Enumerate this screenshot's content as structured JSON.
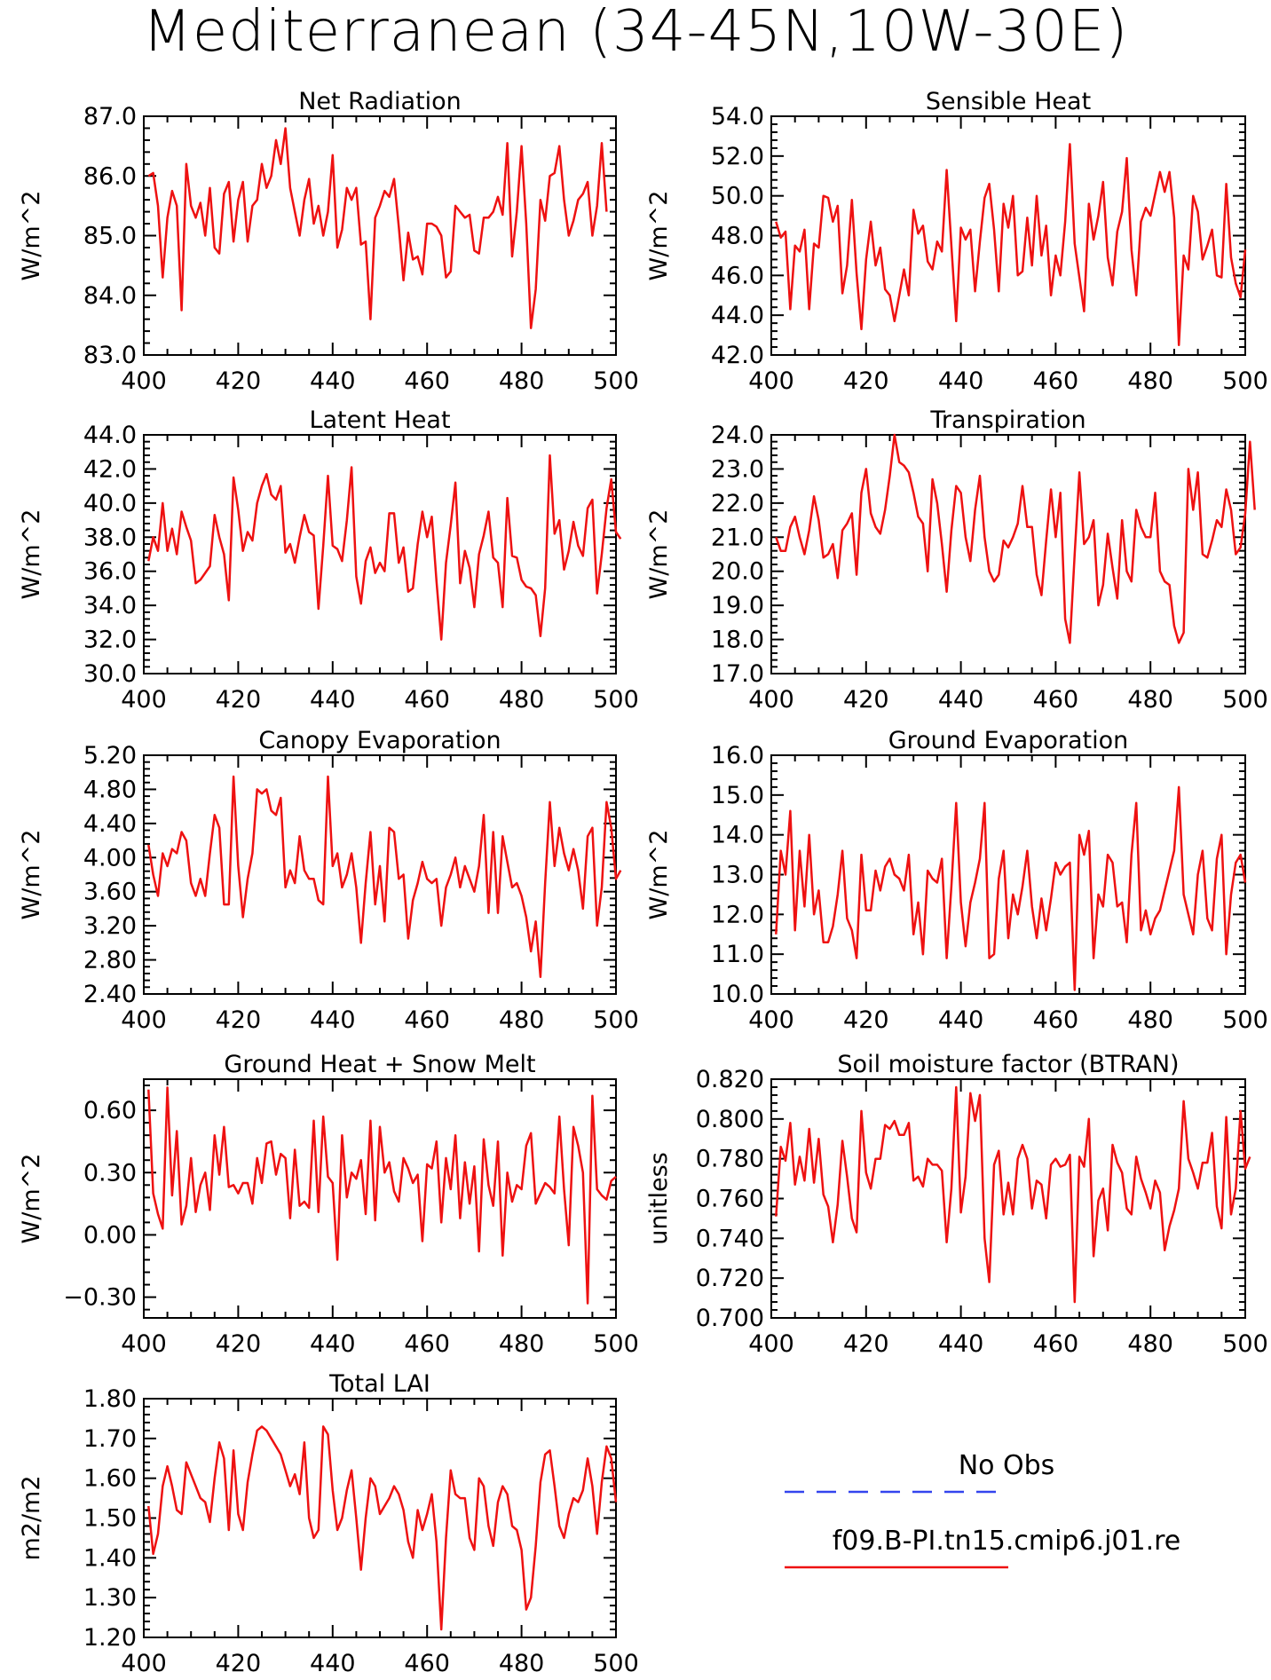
{
  "figure": {
    "title": "Mediterranean (34-45N,10W-30E)"
  },
  "legend": {
    "entries": [
      {
        "label": "No Obs",
        "color": "#3344ee",
        "dash": true
      },
      {
        "label": "f09.B-PI.tn15.cmip6.j01.re",
        "color": "#ee1111",
        "dash": false
      }
    ]
  },
  "colors": {
    "series": "#ee1111",
    "axis": "#000000"
  },
  "chart_data": [
    {
      "type": "line",
      "title": "Net Radiation",
      "xlabel": "",
      "ylabel": "W/m^2",
      "xlim": [
        400,
        500
      ],
      "ylim": [
        83.0,
        87.0
      ],
      "xticks": [
        "400",
        "420",
        "440",
        "460",
        "480",
        "500"
      ],
      "yticks": [
        "83.0",
        "84.0",
        "85.0",
        "86.0",
        "87.0"
      ],
      "x_start": 401,
      "values": [
        86.0,
        86.05,
        85.5,
        84.3,
        85.3,
        85.75,
        85.5,
        83.75,
        86.2,
        85.5,
        85.3,
        85.55,
        85.0,
        85.8,
        84.8,
        84.7,
        85.7,
        85.9,
        84.9,
        85.6,
        85.9,
        84.9,
        85.5,
        85.6,
        86.2,
        85.8,
        86.0,
        86.6,
        86.2,
        86.8,
        85.8,
        85.4,
        85.0,
        85.6,
        85.95,
        85.2,
        85.5,
        85.0,
        85.4,
        86.35,
        84.8,
        85.1,
        85.8,
        85.6,
        85.8,
        84.85,
        84.9,
        83.6,
        85.3,
        85.5,
        85.75,
        85.65,
        85.95,
        85.15,
        84.25,
        85.05,
        84.6,
        84.65,
        84.35,
        85.2,
        85.2,
        85.15,
        85.0,
        84.3,
        84.4,
        85.5,
        85.4,
        85.3,
        85.35,
        84.75,
        84.7,
        85.3,
        85.3,
        85.4,
        85.65,
        85.35,
        86.55,
        84.65,
        85.4,
        86.5,
        85.2,
        83.45,
        84.1,
        85.6,
        85.25,
        86.0,
        86.05,
        86.5,
        85.6,
        85.0,
        85.25,
        85.6,
        85.7,
        85.9,
        85.0,
        85.5,
        86.55,
        85.4
      ]
    },
    {
      "type": "line",
      "title": "Sensible Heat",
      "xlabel": "",
      "ylabel": "W/m^2",
      "xlim": [
        400,
        500
      ],
      "ylim": [
        42.0,
        54.0
      ],
      "xticks": [
        "400",
        "420",
        "440",
        "460",
        "480",
        "500"
      ],
      "yticks": [
        "42.0",
        "44.0",
        "46.0",
        "48.0",
        "50.0",
        "52.0",
        "54.0"
      ],
      "x_start": 401,
      "values": [
        48.7,
        47.9,
        48.2,
        44.3,
        47.5,
        47.2,
        48.3,
        44.3,
        47.6,
        47.4,
        50.0,
        49.9,
        48.7,
        49.5,
        45.1,
        46.5,
        49.8,
        46.1,
        43.3,
        46.8,
        48.7,
        46.5,
        47.4,
        45.3,
        45.0,
        43.7,
        45.0,
        46.3,
        45.0,
        49.3,
        48.1,
        48.5,
        46.7,
        46.3,
        47.7,
        47.2,
        51.3,
        47.5,
        43.7,
        48.4,
        47.8,
        48.3,
        45.2,
        47.7,
        49.9,
        50.6,
        48.3,
        45.2,
        49.6,
        48.4,
        50.0,
        46.0,
        46.2,
        48.9,
        46.5,
        50.0,
        47.0,
        48.5,
        45.0,
        47.0,
        46.0,
        48.7,
        52.6,
        47.6,
        45.9,
        44.2,
        49.6,
        47.8,
        49.0,
        50.7,
        46.9,
        45.5,
        48.2,
        49.2,
        51.9,
        47.3,
        45.0,
        48.7,
        49.4,
        49.0,
        50.1,
        51.2,
        50.2,
        51.2,
        48.9,
        42.5,
        47.0,
        46.3,
        50.0,
        49.2,
        46.8,
        47.5,
        48.3,
        46.0,
        45.9,
        50.6,
        46.9,
        45.6,
        44.9,
        47.3
      ]
    },
    {
      "type": "line",
      "title": "Latent Heat",
      "xlabel": "",
      "ylabel": "W/m^2",
      "xlim": [
        400,
        500
      ],
      "ylim": [
        30.0,
        44.0
      ],
      "xticks": [
        "400",
        "420",
        "440",
        "460",
        "480",
        "500"
      ],
      "yticks": [
        "30.0",
        "32.0",
        "34.0",
        "36.0",
        "38.0",
        "40.0",
        "42.0",
        "44.0"
      ],
      "x_start": 401,
      "values": [
        36.6,
        38.0,
        37.2,
        40.0,
        37.2,
        38.5,
        37.0,
        39.5,
        38.6,
        37.8,
        35.3,
        35.5,
        35.9,
        36.3,
        39.3,
        38.0,
        37.0,
        34.3,
        41.5,
        39.6,
        37.2,
        38.3,
        37.8,
        40.0,
        41.0,
        41.7,
        40.5,
        40.2,
        41.0,
        37.1,
        37.6,
        36.5,
        38.0,
        39.3,
        38.3,
        38.1,
        33.8,
        37.5,
        41.6,
        37.5,
        37.3,
        36.6,
        39.0,
        42.1,
        35.7,
        34.1,
        36.6,
        37.4,
        35.9,
        36.5,
        36.0,
        39.4,
        39.4,
        36.5,
        37.4,
        34.8,
        35.0,
        37.6,
        39.5,
        38.0,
        39.2,
        35.4,
        32.0,
        36.5,
        38.7,
        41.2,
        35.3,
        37.2,
        36.2,
        33.9,
        37.0,
        38.1,
        39.5,
        36.8,
        36.5,
        33.9,
        40.3,
        36.9,
        36.8,
        35.5,
        35.1,
        35.0,
        34.6,
        32.2,
        35.0,
        42.8,
        38.2,
        39.0,
        36.1,
        37.2,
        38.9,
        37.5,
        36.9,
        39.7,
        40.2,
        34.7,
        37.0,
        39.7,
        41.4,
        38.3,
        37.9
      ]
    },
    {
      "type": "line",
      "title": "Transpiration",
      "xlabel": "",
      "ylabel": "W/m^2",
      "xlim": [
        400,
        500
      ],
      "ylim": [
        17.0,
        24.0
      ],
      "xticks": [
        "400",
        "420",
        "440",
        "460",
        "480",
        "500"
      ],
      "yticks": [
        "17.0",
        "18.0",
        "19.0",
        "20.0",
        "21.0",
        "22.0",
        "23.0",
        "24.0"
      ],
      "x_start": 401,
      "values": [
        21.0,
        20.6,
        20.6,
        21.3,
        21.6,
        21.0,
        20.5,
        21.2,
        22.2,
        21.5,
        20.4,
        20.5,
        20.8,
        19.8,
        21.2,
        21.4,
        21.7,
        19.9,
        22.3,
        23.0,
        21.7,
        21.3,
        21.1,
        21.8,
        22.8,
        24.0,
        23.2,
        23.1,
        22.9,
        22.3,
        21.6,
        21.4,
        20.0,
        22.7,
        22.0,
        20.8,
        19.4,
        21.2,
        22.5,
        22.3,
        21.0,
        20.3,
        21.8,
        22.8,
        21.0,
        20.0,
        19.7,
        19.9,
        20.9,
        20.7,
        21.0,
        21.4,
        22.5,
        21.3,
        21.3,
        19.9,
        19.3,
        20.9,
        22.4,
        21.0,
        22.3,
        18.6,
        17.9,
        20.5,
        22.9,
        20.8,
        21.0,
        21.5,
        19.0,
        19.6,
        21.1,
        20.1,
        19.2,
        21.5,
        20.0,
        19.7,
        21.8,
        21.3,
        21.0,
        21.0,
        22.3,
        20.0,
        19.7,
        19.6,
        18.4,
        17.9,
        18.2,
        23.0,
        21.8,
        22.9,
        20.5,
        20.4,
        20.9,
        21.5,
        21.3,
        22.4,
        21.8,
        20.5,
        20.7,
        21.7,
        23.8,
        21.8
      ]
    },
    {
      "type": "line",
      "title": "Canopy Evaporation",
      "xlabel": "",
      "ylabel": "W/m^2",
      "xlim": [
        400,
        500
      ],
      "ylim": [
        2.4,
        5.2
      ],
      "xticks": [
        "400",
        "420",
        "440",
        "460",
        "480",
        "500"
      ],
      "yticks": [
        "2.40",
        "2.80",
        "3.20",
        "3.60",
        "4.00",
        "4.40",
        "4.80",
        "5.20"
      ],
      "x_start": 401,
      "values": [
        4.15,
        3.8,
        3.55,
        4.05,
        3.9,
        4.1,
        4.05,
        4.3,
        4.2,
        3.7,
        3.55,
        3.75,
        3.55,
        4.05,
        4.5,
        4.35,
        3.45,
        3.45,
        4.95,
        3.9,
        3.3,
        3.75,
        4.05,
        4.8,
        4.75,
        4.8,
        4.55,
        4.5,
        4.7,
        3.65,
        3.85,
        3.7,
        4.25,
        3.85,
        3.75,
        3.75,
        3.5,
        3.45,
        4.95,
        3.9,
        4.05,
        3.65,
        3.8,
        4.05,
        3.65,
        3.0,
        3.7,
        4.3,
        3.45,
        3.9,
        3.25,
        4.35,
        4.3,
        3.75,
        3.8,
        3.05,
        3.5,
        3.7,
        3.95,
        3.75,
        3.7,
        3.75,
        3.2,
        3.65,
        3.8,
        4.0,
        3.65,
        3.9,
        3.75,
        3.6,
        3.9,
        4.5,
        3.35,
        4.3,
        3.35,
        4.25,
        3.95,
        3.65,
        3.7,
        3.55,
        3.3,
        2.9,
        3.25,
        2.6,
        3.7,
        4.65,
        3.9,
        4.35,
        4.05,
        3.85,
        4.1,
        3.85,
        3.4,
        4.25,
        4.35,
        3.2,
        3.65,
        4.65,
        4.35,
        3.75,
        3.85
      ]
    },
    {
      "type": "line",
      "title": "Ground Evaporation",
      "xlabel": "",
      "ylabel": "W/m^2",
      "xlim": [
        400,
        500
      ],
      "ylim": [
        10.0,
        16.0
      ],
      "xticks": [
        "400",
        "420",
        "440",
        "460",
        "480",
        "500"
      ],
      "yticks": [
        "10.0",
        "11.0",
        "12.0",
        "13.0",
        "14.0",
        "15.0",
        "16.0"
      ],
      "x_start": 401,
      "values": [
        11.5,
        13.6,
        13.0,
        14.6,
        11.6,
        13.6,
        12.2,
        14.0,
        12.0,
        12.6,
        11.3,
        11.3,
        11.7,
        12.5,
        13.6,
        11.9,
        11.6,
        10.9,
        13.5,
        12.1,
        12.1,
        13.1,
        12.6,
        13.2,
        13.4,
        13.0,
        12.9,
        12.6,
        13.5,
        11.5,
        12.3,
        11.0,
        13.1,
        12.9,
        12.8,
        13.4,
        10.9,
        12.7,
        14.8,
        12.3,
        11.2,
        12.3,
        12.8,
        13.4,
        14.8,
        10.9,
        11.0,
        12.9,
        13.6,
        11.4,
        12.5,
        12.0,
        12.7,
        13.6,
        12.2,
        11.4,
        12.4,
        11.6,
        12.4,
        13.3,
        13.0,
        13.2,
        13.3,
        10.1,
        14.0,
        13.5,
        14.1,
        10.9,
        12.5,
        12.2,
        13.5,
        13.3,
        12.2,
        12.3,
        11.3,
        13.5,
        14.8,
        11.6,
        12.1,
        11.5,
        11.9,
        12.1,
        12.6,
        13.1,
        13.6,
        15.2,
        12.5,
        12.0,
        11.5,
        13.0,
        13.6,
        11.9,
        11.6,
        13.4,
        14.0,
        11.0,
        12.5,
        13.3,
        13.5,
        12.8
      ]
    },
    {
      "type": "line",
      "title": "Ground Heat + Snow Melt",
      "xlabel": "",
      "ylabel": "W/m^2",
      "xlim": [
        400,
        500
      ],
      "ylim": [
        -0.4,
        0.75
      ],
      "xticks": [
        "400",
        "420",
        "440",
        "460",
        "480",
        "500"
      ],
      "yticks": [
        "−0.30",
        "0.00",
        "0.30",
        "0.60"
      ],
      "ytick_values": [
        -0.3,
        0.0,
        0.3,
        0.6
      ],
      "x_start": 401,
      "values": [
        0.7,
        0.2,
        0.1,
        0.03,
        0.71,
        0.19,
        0.5,
        0.05,
        0.14,
        0.37,
        0.11,
        0.24,
        0.3,
        0.12,
        0.48,
        0.29,
        0.52,
        0.23,
        0.24,
        0.2,
        0.25,
        0.25,
        0.15,
        0.37,
        0.25,
        0.44,
        0.45,
        0.29,
        0.39,
        0.37,
        0.08,
        0.41,
        0.14,
        0.16,
        0.13,
        0.55,
        0.11,
        0.57,
        0.28,
        0.25,
        -0.12,
        0.48,
        0.18,
        0.3,
        0.27,
        0.36,
        0.1,
        0.55,
        0.07,
        0.52,
        0.3,
        0.35,
        0.21,
        0.16,
        0.37,
        0.32,
        0.25,
        0.29,
        -0.03,
        0.34,
        0.32,
        0.45,
        0.06,
        0.37,
        0.22,
        0.48,
        0.08,
        0.35,
        0.15,
        0.33,
        -0.08,
        0.46,
        0.24,
        0.14,
        0.45,
        -0.1,
        0.3,
        0.16,
        0.24,
        0.22,
        0.43,
        0.49,
        0.15,
        0.2,
        0.25,
        0.23,
        0.2,
        0.57,
        0.22,
        -0.05,
        0.52,
        0.43,
        0.3,
        -0.33,
        0.67,
        0.22,
        0.19,
        0.17,
        0.26,
        0.28
      ]
    },
    {
      "type": "line",
      "title": "Soil moisture factor (BTRAN)",
      "xlabel": "",
      "ylabel": "unitless",
      "xlim": [
        400,
        500
      ],
      "ylim": [
        0.7,
        0.82
      ],
      "xticks": [
        "400",
        "420",
        "440",
        "460",
        "480",
        "500"
      ],
      "yticks": [
        "0.700",
        "0.720",
        "0.740",
        "0.760",
        "0.780",
        "0.800",
        "0.820"
      ],
      "x_start": 401,
      "values": [
        0.751,
        0.786,
        0.779,
        0.798,
        0.767,
        0.781,
        0.769,
        0.795,
        0.768,
        0.79,
        0.762,
        0.756,
        0.738,
        0.757,
        0.789,
        0.771,
        0.75,
        0.743,
        0.804,
        0.773,
        0.765,
        0.78,
        0.78,
        0.797,
        0.795,
        0.799,
        0.792,
        0.792,
        0.798,
        0.769,
        0.771,
        0.766,
        0.78,
        0.777,
        0.777,
        0.774,
        0.738,
        0.765,
        0.816,
        0.753,
        0.771,
        0.813,
        0.799,
        0.812,
        0.74,
        0.718,
        0.777,
        0.784,
        0.752,
        0.768,
        0.752,
        0.78,
        0.787,
        0.78,
        0.755,
        0.769,
        0.767,
        0.75,
        0.777,
        0.78,
        0.776,
        0.777,
        0.782,
        0.708,
        0.781,
        0.776,
        0.8,
        0.731,
        0.759,
        0.765,
        0.744,
        0.787,
        0.778,
        0.773,
        0.755,
        0.752,
        0.781,
        0.77,
        0.763,
        0.755,
        0.769,
        0.763,
        0.734,
        0.746,
        0.754,
        0.765,
        0.809,
        0.78,
        0.773,
        0.765,
        0.778,
        0.778,
        0.793,
        0.756,
        0.745,
        0.801,
        0.752,
        0.765,
        0.804,
        0.775,
        0.781
      ]
    },
    {
      "type": "line",
      "title": "Total LAI",
      "xlabel": "",
      "ylabel": "m2/m2",
      "xlim": [
        400,
        500
      ],
      "ylim": [
        1.2,
        1.8
      ],
      "xticks": [
        "400",
        "420",
        "440",
        "460",
        "480",
        "500"
      ],
      "yticks": [
        "1.20",
        "1.30",
        "1.40",
        "1.50",
        "1.60",
        "1.70",
        "1.80"
      ],
      "x_start": 401,
      "values": [
        1.53,
        1.41,
        1.46,
        1.58,
        1.63,
        1.58,
        1.52,
        1.51,
        1.64,
        1.61,
        1.58,
        1.55,
        1.54,
        1.49,
        1.6,
        1.69,
        1.65,
        1.47,
        1.67,
        1.51,
        1.47,
        1.59,
        1.66,
        1.72,
        1.73,
        1.72,
        1.7,
        1.68,
        1.66,
        1.62,
        1.58,
        1.61,
        1.56,
        1.69,
        1.5,
        1.45,
        1.47,
        1.73,
        1.71,
        1.57,
        1.47,
        1.5,
        1.57,
        1.62,
        1.5,
        1.37,
        1.5,
        1.6,
        1.58,
        1.51,
        1.53,
        1.55,
        1.58,
        1.56,
        1.52,
        1.44,
        1.4,
        1.52,
        1.47,
        1.51,
        1.56,
        1.44,
        1.22,
        1.45,
        1.62,
        1.56,
        1.55,
        1.55,
        1.45,
        1.42,
        1.6,
        1.58,
        1.48,
        1.43,
        1.54,
        1.58,
        1.56,
        1.48,
        1.47,
        1.42,
        1.27,
        1.3,
        1.43,
        1.59,
        1.66,
        1.67,
        1.58,
        1.48,
        1.45,
        1.51,
        1.55,
        1.54,
        1.57,
        1.65,
        1.58,
        1.46,
        1.59,
        1.68,
        1.65,
        1.54
      ]
    }
  ]
}
